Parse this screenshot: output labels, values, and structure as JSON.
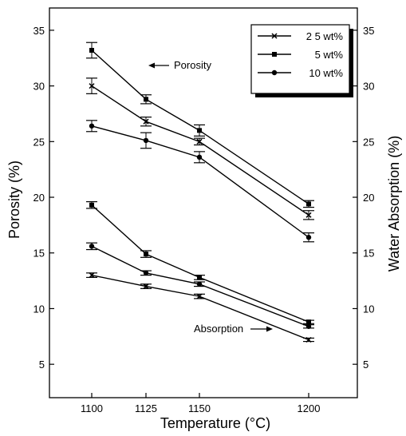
{
  "chart_data": {
    "type": "line",
    "title": "",
    "xlabel": "Temperature (°C)",
    "ylabel_left": "Porosity (%)",
    "ylabel_right": "Water Absorption (%)",
    "x": [
      1100,
      1125,
      1150,
      1200
    ],
    "xlim": [
      1090,
      1210
    ],
    "ylim": [
      2,
      37
    ],
    "yticks": [
      5,
      10,
      15,
      20,
      25,
      30,
      35
    ],
    "grid": false,
    "legend_position": "top-right",
    "legend": [
      {
        "label": "2 5 wt%",
        "marker": "x"
      },
      {
        "label": "5 wt%",
        "marker": "square"
      },
      {
        "label": "10 wt%",
        "marker": "circle"
      }
    ],
    "series": [
      {
        "group": "porosity",
        "legend_index": 1,
        "values": [
          33.2,
          28.8,
          26.0,
          19.4
        ],
        "errors": [
          0.7,
          0.4,
          0.5,
          0.3
        ]
      },
      {
        "group": "porosity",
        "legend_index": 0,
        "values": [
          30.0,
          26.8,
          25.0,
          18.4
        ],
        "errors": [
          0.7,
          0.4,
          0.3,
          0.4
        ]
      },
      {
        "group": "porosity",
        "legend_index": 2,
        "values": [
          26.4,
          25.1,
          23.6,
          16.4
        ],
        "errors": [
          0.5,
          0.7,
          0.5,
          0.4
        ]
      },
      {
        "group": "absorption",
        "legend_index": 1,
        "values": [
          19.3,
          14.9,
          12.8,
          8.8
        ],
        "errors": [
          0.3,
          0.3,
          0.2,
          0.15
        ]
      },
      {
        "group": "absorption",
        "legend_index": 2,
        "values": [
          15.6,
          13.2,
          12.2,
          8.4
        ],
        "errors": [
          0.3,
          0.2,
          0.2,
          0.15
        ]
      },
      {
        "group": "absorption",
        "legend_index": 0,
        "values": [
          13.0,
          12.0,
          11.1,
          7.2
        ],
        "errors": [
          0.2,
          0.2,
          0.2,
          0.15
        ]
      }
    ],
    "annotations": {
      "porosity": "Porosity",
      "absorption": "Absorption"
    }
  }
}
